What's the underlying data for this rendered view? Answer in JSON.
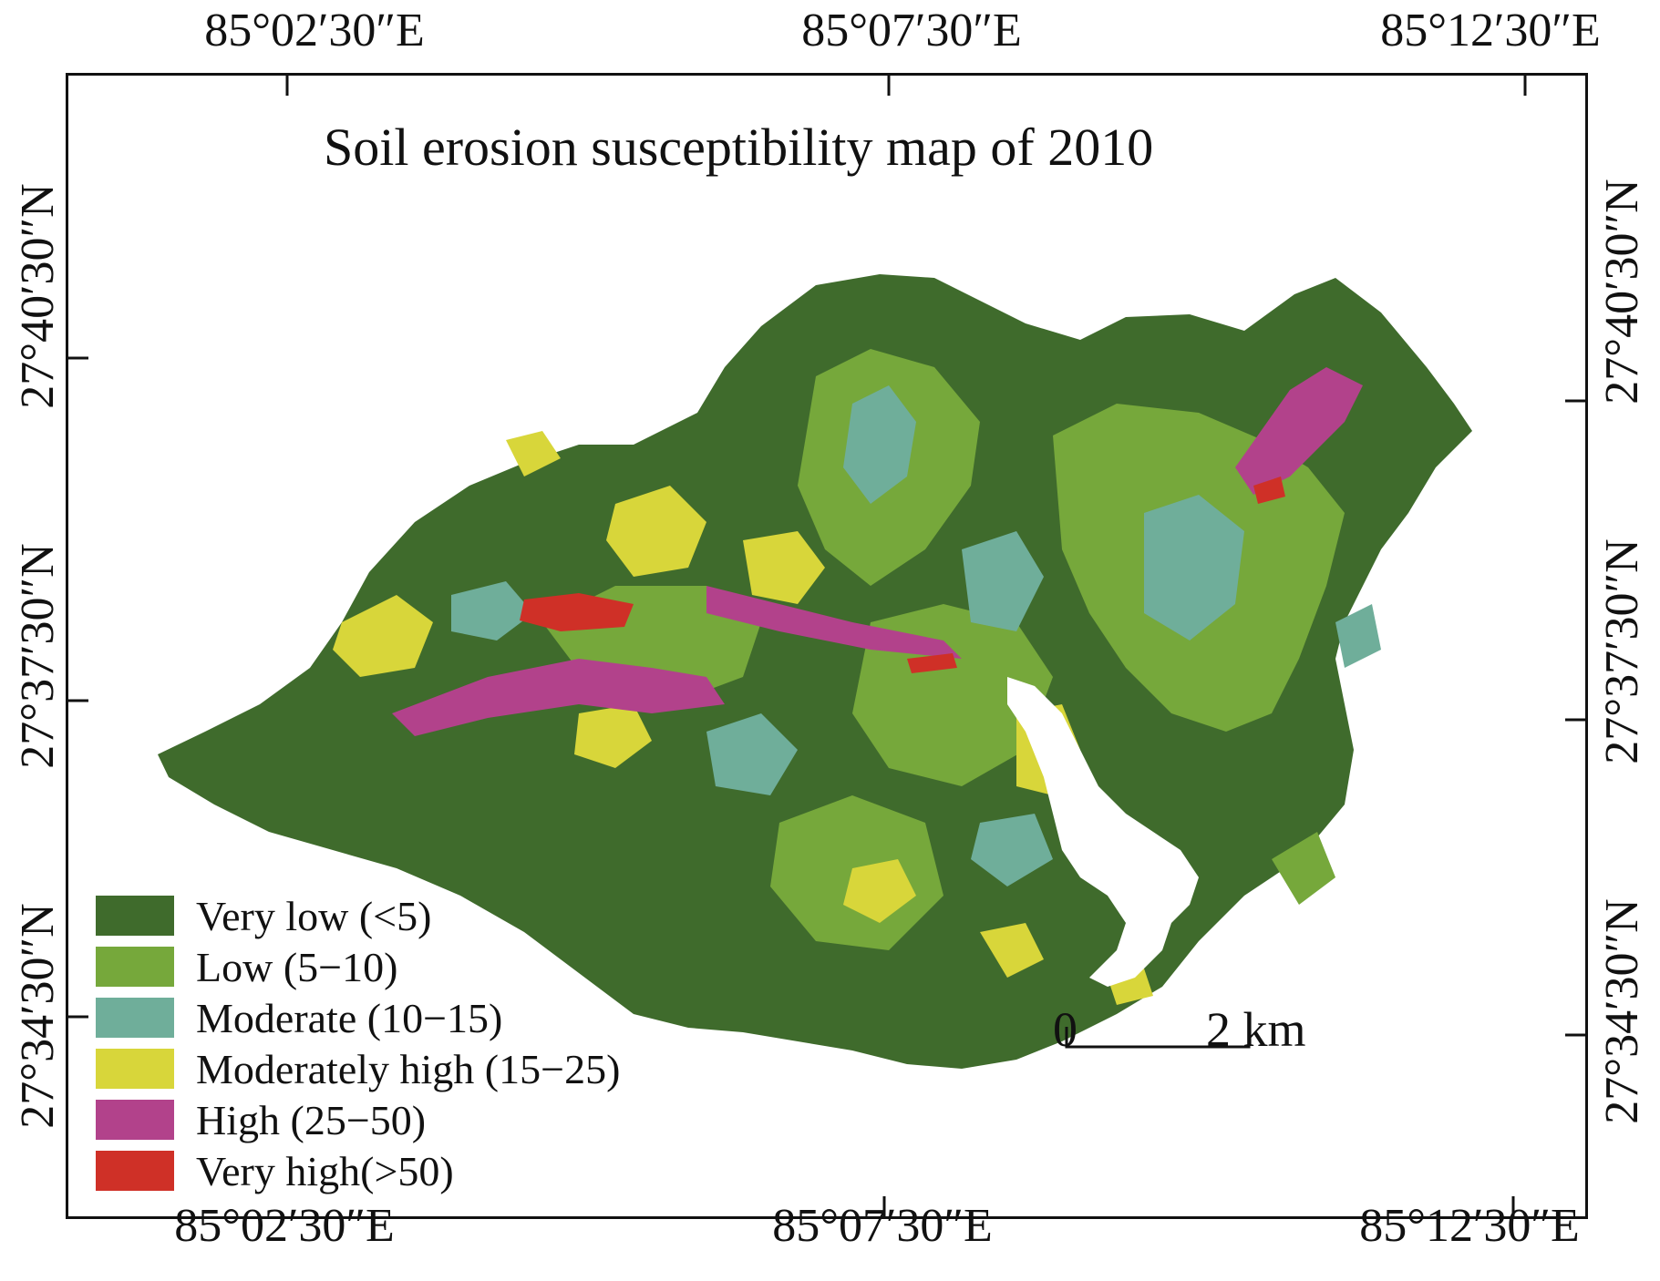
{
  "map": {
    "title": "Soil erosion susceptibility map of 2010",
    "top_longitudes": [
      "85°02′30″E",
      "85°07′30″E",
      "85°12′30″E"
    ],
    "bottom_longitudes": [
      "85°02′30″E",
      "85°07′30″E",
      "85°12′30″E"
    ],
    "left_latitudes": [
      "27°40′30″N",
      "27°37′30″N",
      "27°34′30″N"
    ],
    "right_latitudes": [
      "27°40′30″N",
      "27°37′30″N",
      "27°34′30″N"
    ],
    "legend": [
      {
        "label": "Very low (<5)",
        "color": "#3f6b2c"
      },
      {
        "label": "Low (5−10)",
        "color": "#76a83b"
      },
      {
        "label": "Moderate (10−15)",
        "color": "#6fae9a"
      },
      {
        "label": "Moderately high (15−25)",
        "color": "#d8d63a"
      },
      {
        "label": "High (25−50)",
        "color": "#b2428b"
      },
      {
        "label": "Very high(>50)",
        "color": "#cf3027"
      }
    ],
    "scale_bar": {
      "start": "0",
      "end": "2 km"
    }
  }
}
